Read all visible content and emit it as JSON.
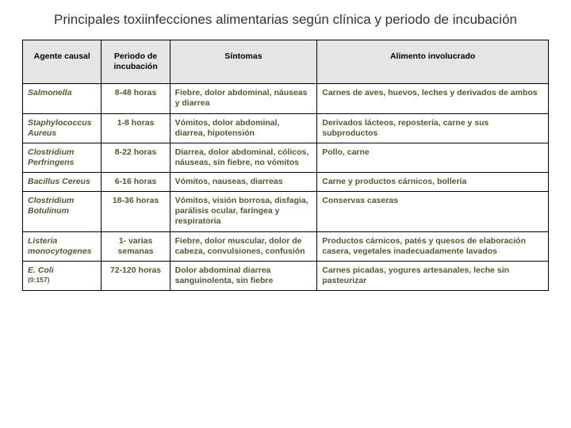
{
  "title": "Principales toxiinfecciones alimentarias según clínica y periodo de incubación",
  "columns": [
    "Agente causal",
    "Periodo de incubación",
    "Síntomas",
    "Alimento involucrado"
  ],
  "rows": [
    {
      "agent": "Salmonella",
      "sub": "",
      "period": "8-48 horas",
      "symptoms": "Fiebre, dolor abdominal, náuseas y diarrea",
      "food": "Carnes de aves, huevos, leches y derivados de ambos"
    },
    {
      "agent": "Staphylococcus Aureus",
      "sub": "",
      "period": "1-8 horas",
      "symptoms": "Vómitos, dolor abdominal, diarrea, hipotensión",
      "food": "Derivados lácteos, repostería, carne  y sus subproductos"
    },
    {
      "agent": "Clostridium Perfringens",
      "sub": "",
      "period": "8-22 horas",
      "symptoms": "Diarrea,  dolor abdominal, cólicos, náuseas, sin fiebre, no vómitos",
      "food": "Pollo, carne"
    },
    {
      "agent": "Bacillus Cereus",
      "sub": "",
      "period": "6-16 horas",
      "symptoms": "Vómitos, nauseas, diarreas",
      "food": "Carne y productos cárnicos, bollería"
    },
    {
      "agent": "Clostridium Botulinum",
      "sub": "",
      "period": "18-36 horas",
      "symptoms": "Vómitos, visión borrosa, disfagia, parálisis ocular, faríngea y respiratoria",
      "food": "Conservas caseras"
    },
    {
      "agent": "Listeria monocytogenes",
      "sub": "",
      "period": "1- varias semanas",
      "symptoms": "Fiebre, dolor muscular, dolor de cabeza, convulsiones, confusión",
      "food": "Productos cárnicos, patés y quesos de elaboración casera, vegetales inadecuadamente lavados"
    },
    {
      "agent": "E. Coli",
      "sub": "(0:157)",
      "period": "72-120 horas",
      "symptoms": "Dolor abdominal diarrea sanguinolenta, sin fiebre",
      "food": "Carnes picadas, yogures artesanales, leche sin pasteurizar"
    }
  ],
  "colors": {
    "header_bg": "#e5e5e5",
    "cell_text": "#575731",
    "border": "#000000"
  }
}
